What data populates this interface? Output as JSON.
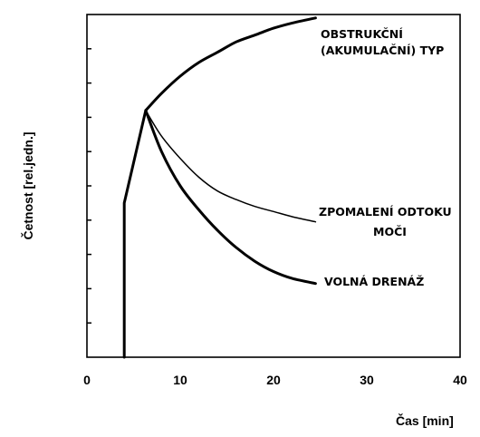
{
  "chart_data": {
    "type": "line",
    "title": "",
    "xlabel": "Čas [min]",
    "ylabel": "Četnost [rel.jedn.]",
    "xlim": [
      0,
      40
    ],
    "x_ticks": [
      "0",
      "10",
      "20",
      "30",
      "40"
    ],
    "y_ticks_labeled": false,
    "grid": false,
    "legend": "none",
    "ylim": [
      0,
      100
    ],
    "series": [
      {
        "name": "OBSTRUKČNÍ (AKUMULAČNÍ) TYP",
        "line_weight": "bold",
        "x": [
          4,
          4,
          6.3,
          8,
          10,
          12,
          14,
          16,
          18,
          20,
          22,
          24.5
        ],
        "y": [
          0,
          45,
          72,
          77,
          82,
          86,
          89,
          92,
          94,
          96,
          97.5,
          99
        ]
      },
      {
        "name": "ZPOMALENÍ ODTOKU MOČI",
        "line_weight": "thin",
        "x": [
          6.3,
          8,
          10,
          12,
          14,
          16,
          18,
          20,
          22,
          24.5
        ],
        "y": [
          72,
          64.5,
          58,
          52.5,
          48.5,
          46,
          44,
          42.5,
          41,
          39.5
        ]
      },
      {
        "name": "VOLNÁ DRENÁŽ",
        "line_weight": "bold",
        "x": [
          6.3,
          8,
          10,
          12,
          14,
          16,
          18,
          20,
          22,
          24.5
        ],
        "y": [
          72,
          60,
          50,
          43,
          37,
          32,
          28,
          25,
          23,
          21.5
        ]
      }
    ]
  }
}
